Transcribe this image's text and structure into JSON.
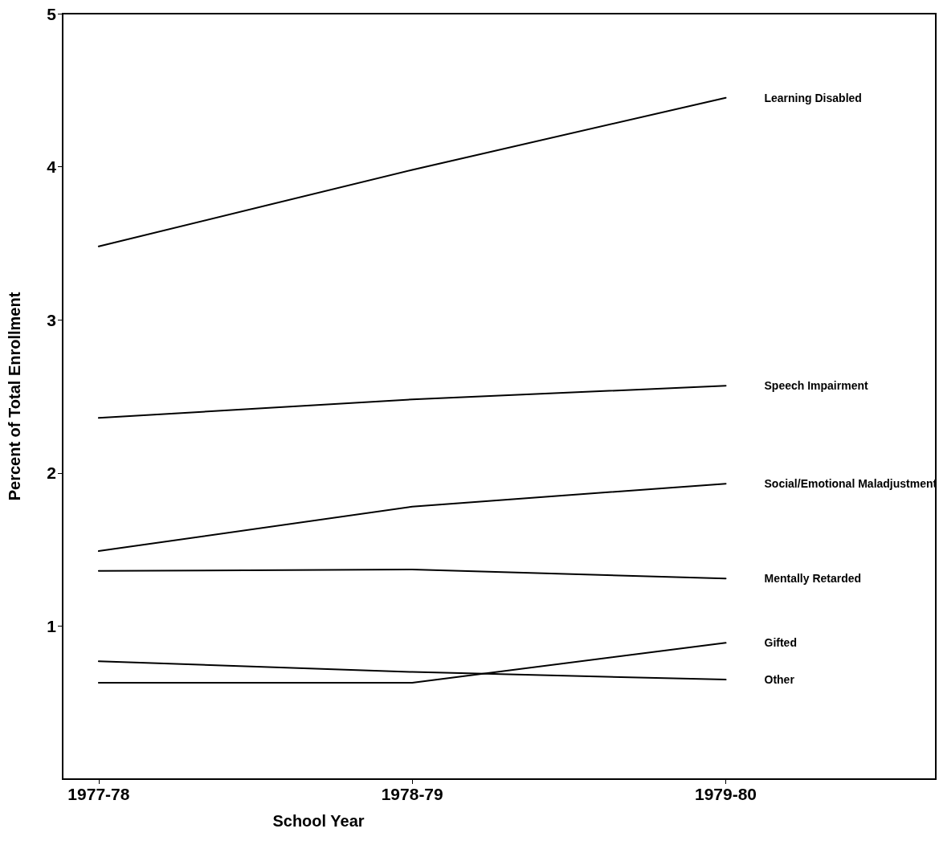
{
  "chart_data": {
    "type": "line",
    "xlabel": "School Year",
    "ylabel": "Percent of Total Enrollment",
    "categories": [
      "1977-78",
      "1978-79",
      "1979-80"
    ],
    "series": [
      {
        "name": "Learning Disabled",
        "color": "#000000",
        "values": [
          3.48,
          3.98,
          4.45
        ]
      },
      {
        "name": "Speech Impairment",
        "color": "#000000",
        "values": [
          2.36,
          2.48,
          2.57
        ]
      },
      {
        "name": "Social/Emotional Maladjustment",
        "color": "#000000",
        "values": [
          1.49,
          1.78,
          1.93
        ]
      },
      {
        "name": "Mentally Retarded",
        "color": "#000000",
        "values": [
          1.36,
          1.37,
          1.31
        ]
      },
      {
        "name": "Gifted",
        "color": "#000000",
        "values": [
          0.63,
          0.63,
          0.89
        ]
      },
      {
        "name": "Other",
        "color": "#000000",
        "values": [
          0.77,
          0.7,
          0.65
        ]
      }
    ],
    "ylim": [
      0,
      5
    ],
    "yticks": [
      1,
      2,
      3,
      4,
      5
    ],
    "grid": false,
    "legend": false,
    "marker": "none",
    "line_style": "solid"
  }
}
